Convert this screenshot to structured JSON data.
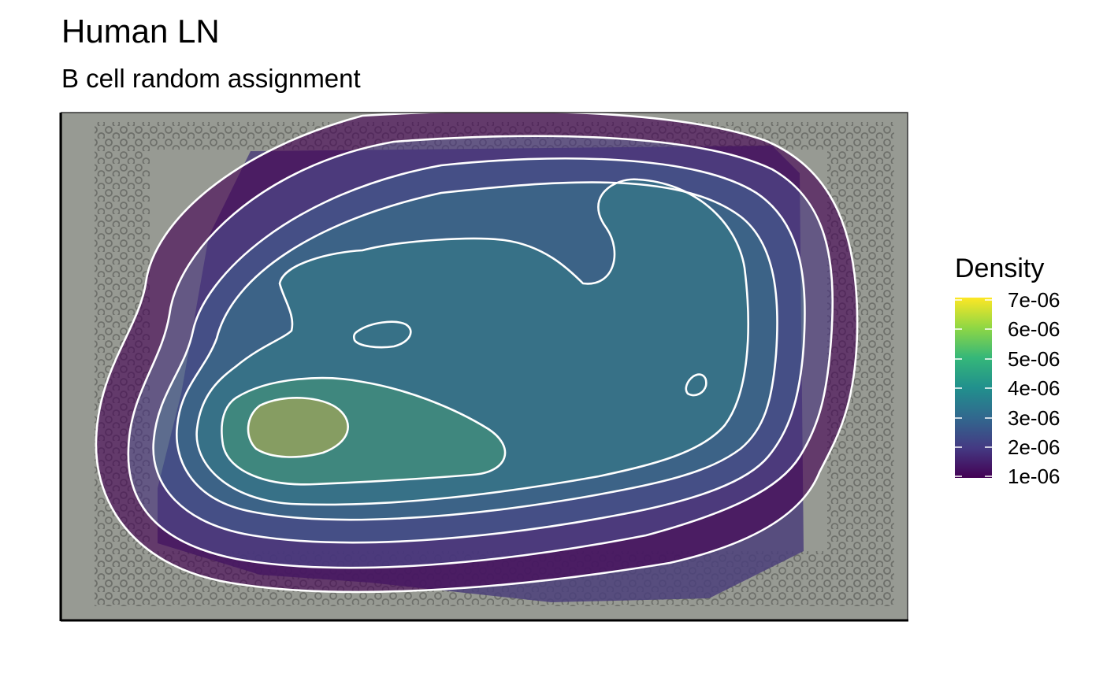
{
  "chart_data": {
    "type": "heatmap",
    "title": "Human LN",
    "subtitle": "B cell random assignment",
    "xlabel": "",
    "ylabel": "",
    "legend": {
      "title": "Density",
      "placement": "right",
      "colormap": "viridis",
      "range": [
        1e-06,
        7e-06
      ],
      "ticks": [
        "7e-06",
        "6e-06",
        "5e-06",
        "4e-06",
        "3e-06",
        "2e-06",
        "1e-06"
      ],
      "colors": [
        "#440154",
        "#443a83",
        "#31688e",
        "#21908d",
        "#35b779",
        "#8fd744",
        "#fde725"
      ]
    },
    "contour_levels": [
      1e-06,
      2e-06,
      3e-06,
      4e-06,
      5e-06,
      6e-06,
      7e-06
    ],
    "contour_color": "#ffffff",
    "grid": false,
    "background": "tissue histology image"
  }
}
